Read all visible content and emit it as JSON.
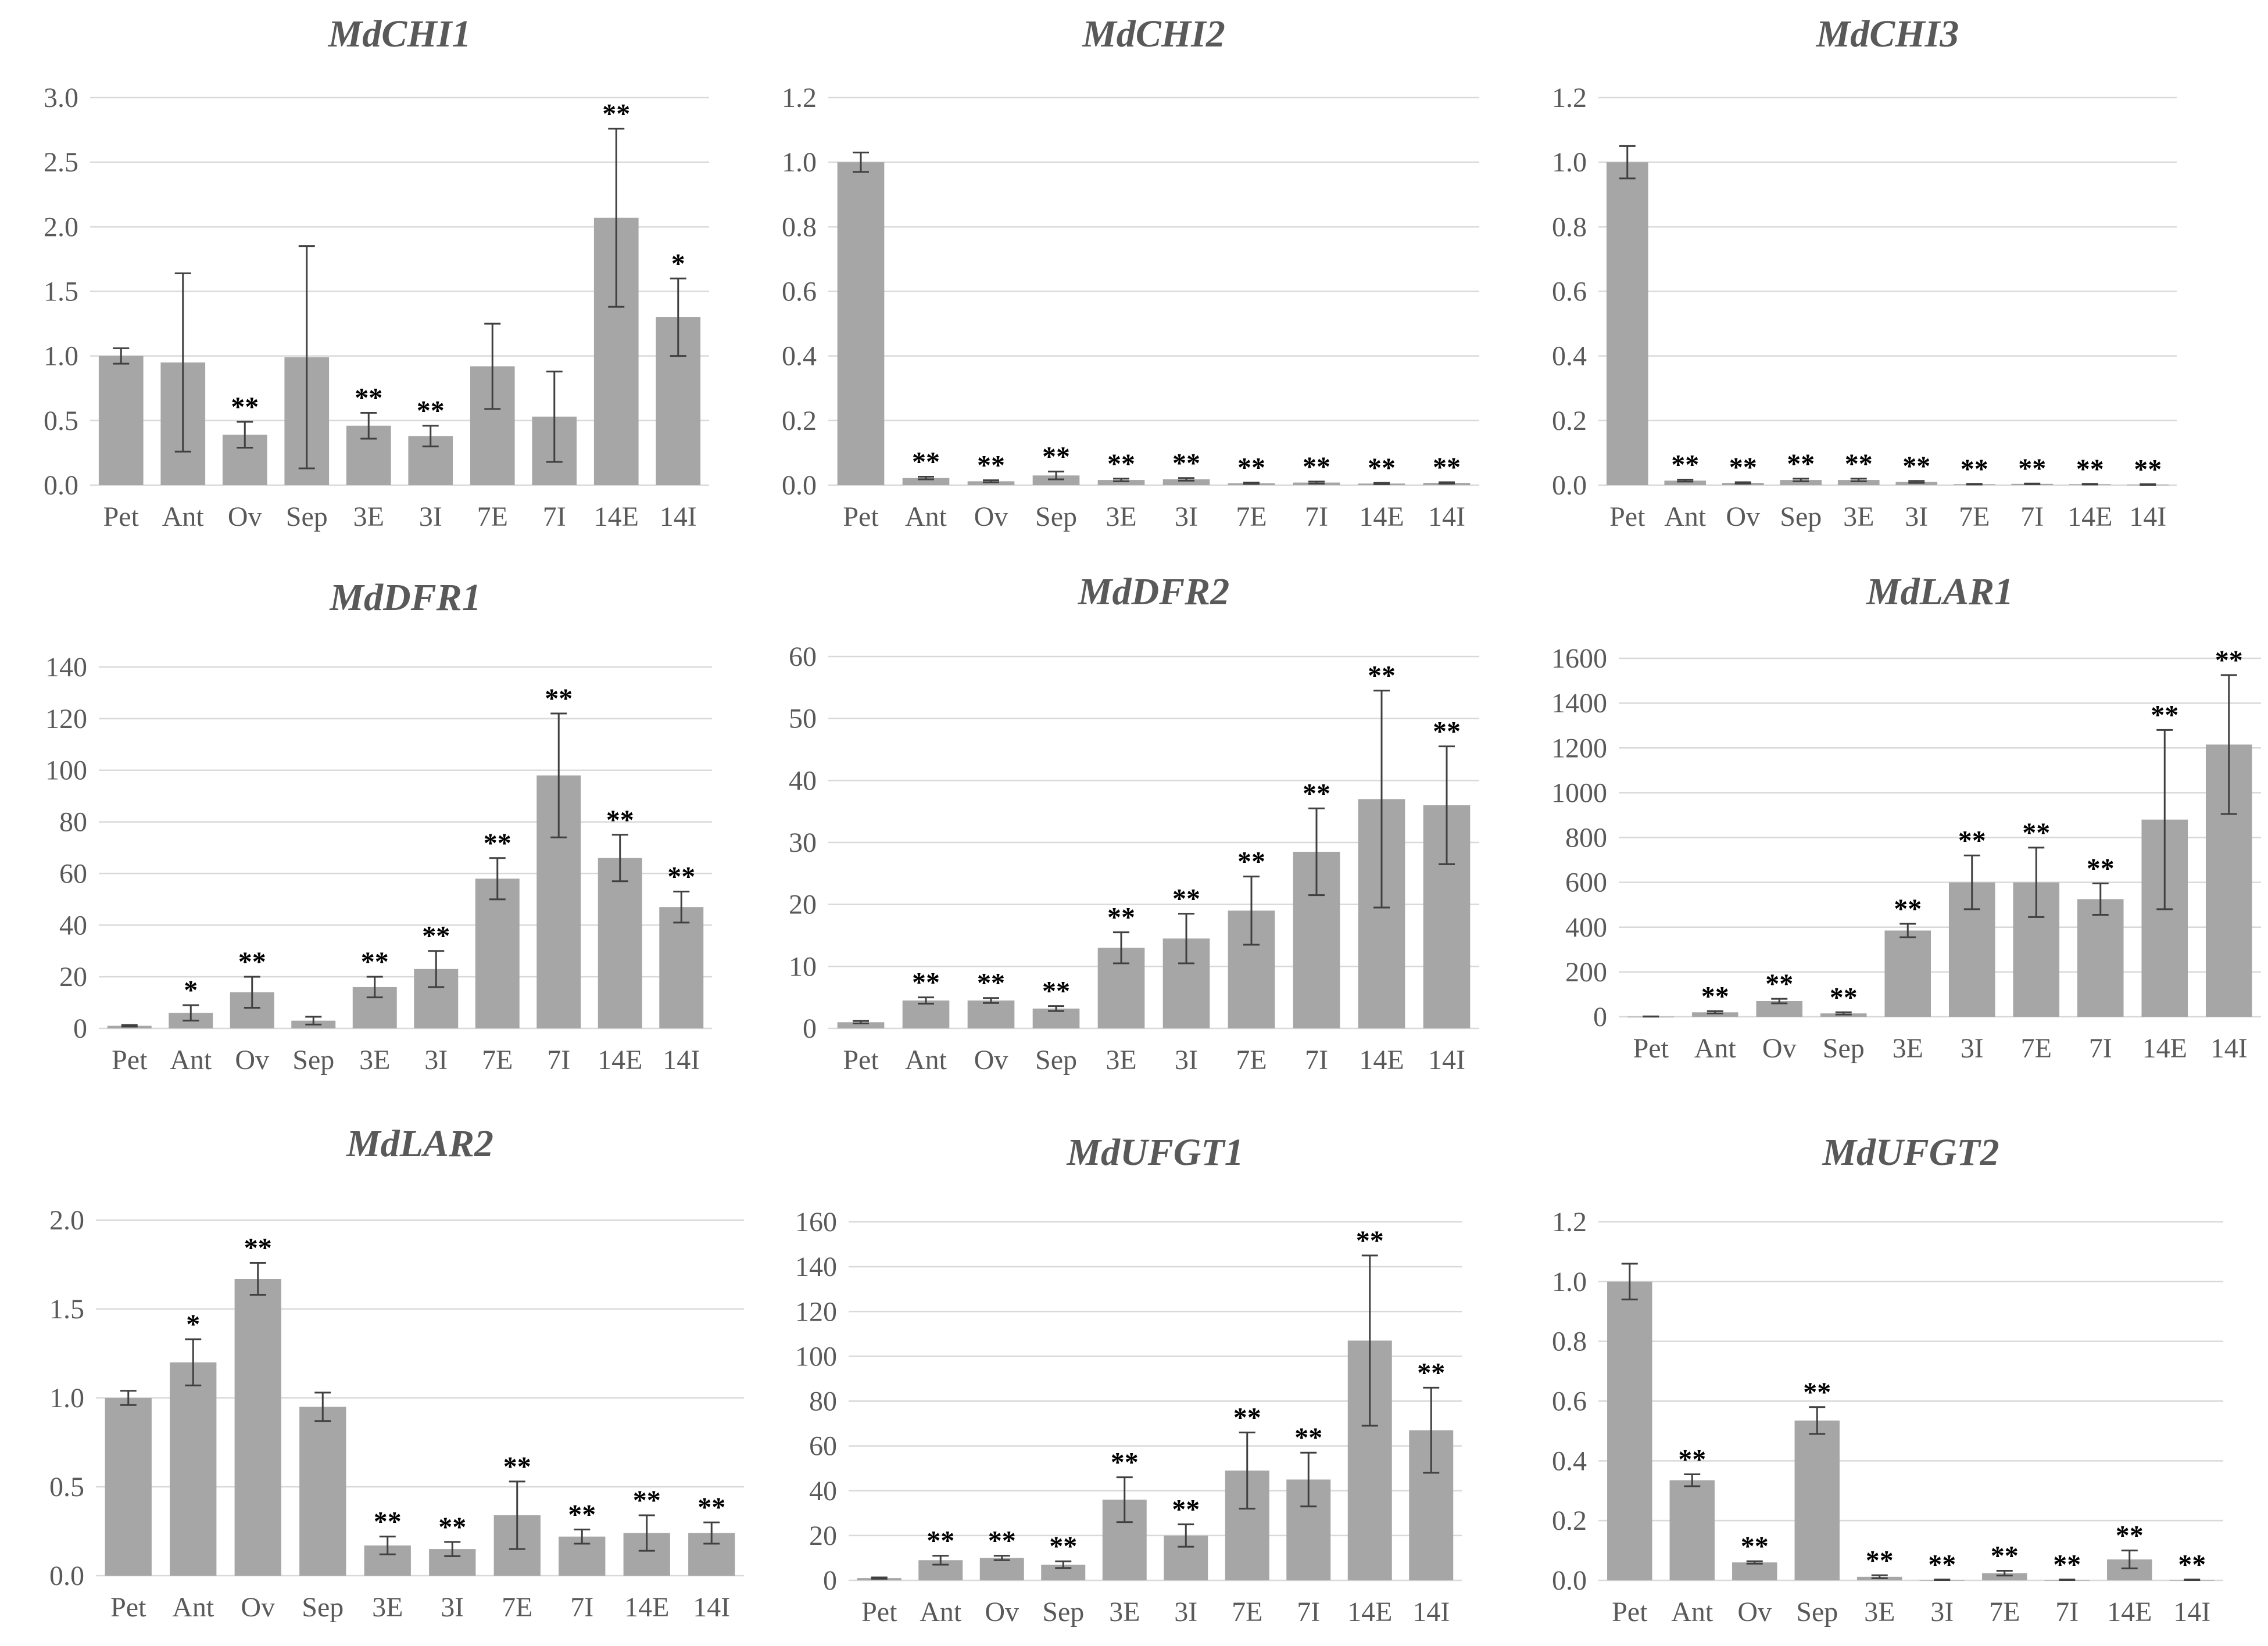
{
  "colors": {
    "bar": "#a6a6a6",
    "grid": "#d9d9d9",
    "text": "#595959",
    "error_bar": "#404040",
    "significance": "#000000"
  },
  "chart_data": [
    {
      "type": "bar",
      "title": "MdCHI1",
      "categories": [
        "Pet",
        "Ant",
        "Ov",
        "Sep",
        "3E",
        "3I",
        "7E",
        "7I",
        "14E",
        "14I"
      ],
      "values": [
        1.0,
        0.95,
        0.39,
        0.99,
        0.46,
        0.38,
        0.92,
        0.53,
        2.07,
        1.3
      ],
      "errors": [
        0.06,
        0.69,
        0.1,
        0.86,
        0.1,
        0.08,
        0.33,
        0.35,
        0.69,
        0.3
      ],
      "significance": [
        "",
        "",
        "**",
        "",
        "**",
        "**",
        "",
        "",
        "**",
        "*"
      ],
      "ylim": [
        0,
        3.0
      ],
      "yticks": [
        "0.0",
        "0.5",
        "1.0",
        "1.5",
        "2.0",
        "2.5",
        "3.0"
      ],
      "grid": true
    },
    {
      "type": "bar",
      "title": "MdCHI2",
      "categories": [
        "Pet",
        "Ant",
        "Ov",
        "Sep",
        "3E",
        "3I",
        "7E",
        "7I",
        "14E",
        "14I"
      ],
      "values": [
        1.0,
        0.022,
        0.012,
        0.03,
        0.016,
        0.018,
        0.006,
        0.008,
        0.005,
        0.007
      ],
      "errors": [
        0.03,
        0.004,
        0.003,
        0.012,
        0.004,
        0.004,
        0.002,
        0.003,
        0.002,
        0.002
      ],
      "significance": [
        "",
        "**",
        "**",
        "**",
        "**",
        "**",
        "**",
        "**",
        "**",
        "**"
      ],
      "ylim": [
        0,
        1.2
      ],
      "yticks": [
        "0.0",
        "0.2",
        "0.4",
        "0.6",
        "0.8",
        "1.0",
        "1.2"
      ],
      "grid": true
    },
    {
      "type": "bar",
      "title": "MdCHI3",
      "categories": [
        "Pet",
        "Ant",
        "Ov",
        "Sep",
        "3E",
        "3I",
        "7E",
        "7I",
        "14E",
        "14I"
      ],
      "values": [
        1.0,
        0.014,
        0.007,
        0.016,
        0.016,
        0.01,
        0.003,
        0.004,
        0.003,
        0.002
      ],
      "errors": [
        0.05,
        0.003,
        0.002,
        0.004,
        0.004,
        0.003,
        0.001,
        0.001,
        0.001,
        0.001
      ],
      "significance": [
        "",
        "**",
        "**",
        "**",
        "**",
        "**",
        "**",
        "**",
        "**",
        "**"
      ],
      "ylim": [
        0,
        1.2
      ],
      "yticks": [
        "0.0",
        "0.2",
        "0.4",
        "0.6",
        "0.8",
        "1.0",
        "1.2"
      ],
      "grid": true
    },
    {
      "type": "bar",
      "title": "MdDFR1",
      "categories": [
        "Pet",
        "Ant",
        "Ov",
        "Sep",
        "3E",
        "3I",
        "7E",
        "7I",
        "14E",
        "14I"
      ],
      "values": [
        1,
        6,
        14,
        3,
        16,
        23,
        58,
        98,
        66,
        47
      ],
      "errors": [
        0.3,
        3,
        6,
        1.5,
        4,
        7,
        8,
        24,
        9,
        6
      ],
      "significance": [
        "",
        "*",
        "**",
        "",
        "**",
        "**",
        "**",
        "**",
        "**",
        "**"
      ],
      "ylim": [
        0,
        140
      ],
      "yticks": [
        "0",
        "20",
        "40",
        "60",
        "80",
        "100",
        "120",
        "140"
      ],
      "grid": true
    },
    {
      "type": "bar",
      "title": "MdDFR2",
      "categories": [
        "Pet",
        "Ant",
        "Ov",
        "Sep",
        "3E",
        "3I",
        "7E",
        "7I",
        "14E",
        "14I"
      ],
      "values": [
        1,
        4.5,
        4.5,
        3.2,
        13,
        14.5,
        19,
        28.5,
        37,
        36
      ],
      "errors": [
        0.2,
        0.5,
        0.4,
        0.4,
        2.5,
        4,
        5.5,
        7,
        17.5,
        9.5
      ],
      "significance": [
        "",
        "**",
        "**",
        "**",
        "**",
        "**",
        "**",
        "**",
        "**",
        "**"
      ],
      "ylim": [
        0,
        60
      ],
      "yticks": [
        "0",
        "10",
        "20",
        "30",
        "40",
        "50",
        "60"
      ],
      "grid": true
    },
    {
      "type": "bar",
      "title": "MdLAR1",
      "categories": [
        "Pet",
        "Ant",
        "Ov",
        "Sep",
        "3E",
        "3I",
        "7E",
        "7I",
        "14E",
        "14I"
      ],
      "values": [
        1,
        20,
        70,
        15,
        385,
        600,
        600,
        525,
        880,
        1215
      ],
      "errors": [
        0.5,
        5,
        10,
        5,
        30,
        120,
        155,
        70,
        400,
        310
      ],
      "significance": [
        "",
        "**",
        "**",
        "**",
        "**",
        "**",
        "**",
        "**",
        "**",
        "**"
      ],
      "ylim": [
        0,
        1600
      ],
      "yticks": [
        "0",
        "200",
        "400",
        "600",
        "800",
        "1000",
        "1200",
        "1400",
        "1600"
      ],
      "grid": true
    },
    {
      "type": "bar",
      "title": "MdLAR2",
      "categories": [
        "Pet",
        "Ant",
        "Ov",
        "Sep",
        "3E",
        "3I",
        "7E",
        "7I",
        "14E",
        "14I"
      ],
      "values": [
        1.0,
        1.2,
        1.67,
        0.95,
        0.17,
        0.15,
        0.34,
        0.22,
        0.24,
        0.24
      ],
      "errors": [
        0.04,
        0.13,
        0.09,
        0.08,
        0.05,
        0.04,
        0.19,
        0.04,
        0.1,
        0.06
      ],
      "significance": [
        "",
        "*",
        "**",
        "",
        "**",
        "**",
        "**",
        "**",
        "**",
        "**"
      ],
      "ylim": [
        0,
        2.0
      ],
      "yticks": [
        "0.0",
        "0.5",
        "1.0",
        "1.5",
        "2.0"
      ],
      "grid": true
    },
    {
      "type": "bar",
      "title": "MdUFGT1",
      "categories": [
        "Pet",
        "Ant",
        "Ov",
        "Sep",
        "3E",
        "3I",
        "7E",
        "7I",
        "14E",
        "14I"
      ],
      "values": [
        1,
        9,
        10,
        7,
        36,
        20,
        49,
        45,
        107,
        67
      ],
      "errors": [
        0.3,
        2,
        1,
        1.5,
        10,
        5,
        17,
        12,
        38,
        19
      ],
      "significance": [
        "",
        "**",
        "**",
        "**",
        "**",
        "**",
        "**",
        "**",
        "**",
        "**"
      ],
      "ylim": [
        0,
        160
      ],
      "yticks": [
        "0",
        "20",
        "40",
        "60",
        "80",
        "100",
        "120",
        "140",
        "160"
      ],
      "grid": true
    },
    {
      "type": "bar",
      "title": "MdUFGT2",
      "categories": [
        "Pet",
        "Ant",
        "Ov",
        "Sep",
        "3E",
        "3I",
        "7E",
        "7I",
        "14E",
        "14I"
      ],
      "values": [
        1.0,
        0.335,
        0.06,
        0.535,
        0.012,
        0.002,
        0.024,
        0.002,
        0.07,
        0.002
      ],
      "errors": [
        0.06,
        0.02,
        0.004,
        0.045,
        0.005,
        0.001,
        0.008,
        0.001,
        0.03,
        0.001
      ],
      "significance": [
        "",
        "**",
        "**",
        "**",
        "**",
        "**",
        "**",
        "**",
        "**",
        "**"
      ],
      "ylim": [
        0,
        1.2
      ],
      "yticks": [
        "0.0",
        "0.2",
        "0.4",
        "0.6",
        "0.8",
        "1.0",
        "1.2"
      ],
      "grid": true
    }
  ]
}
